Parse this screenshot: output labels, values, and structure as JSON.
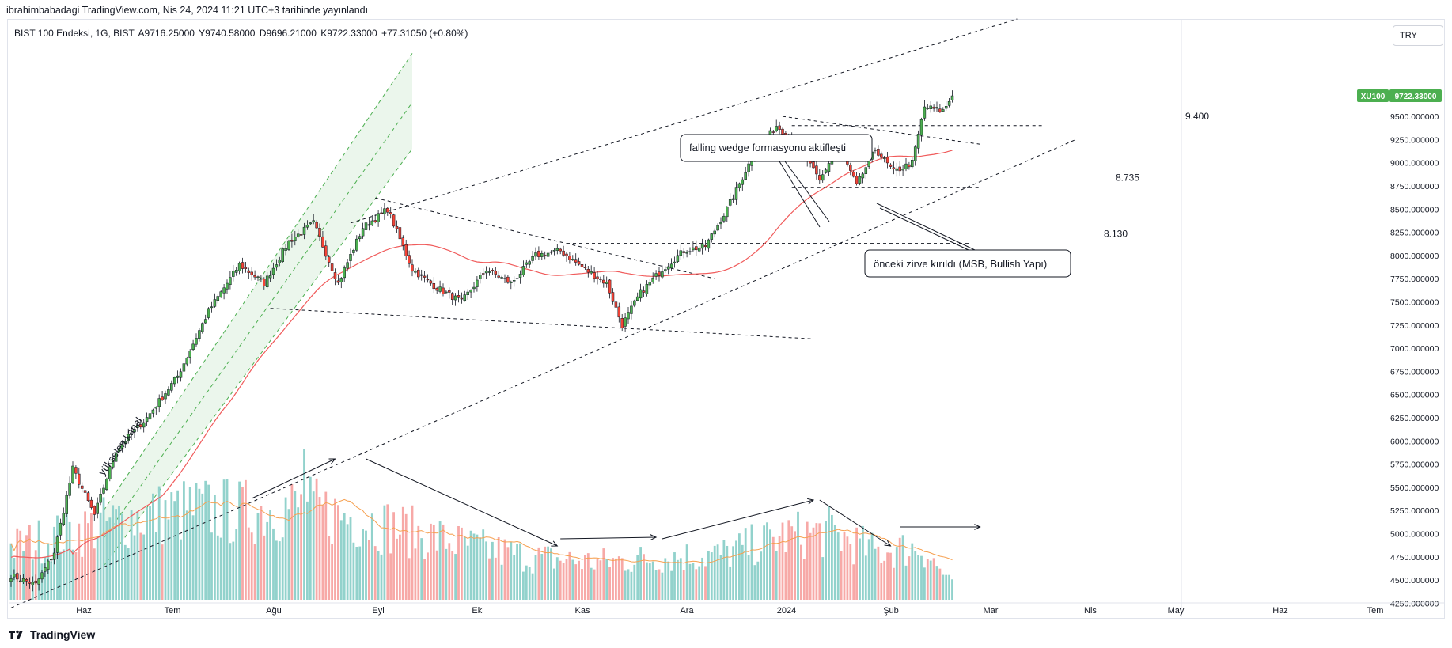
{
  "header": {
    "publish_text": "ibrahimbabadagi TradingView.com, Nis 24, 2024 11:21 UTC+3 tarihinde yayınlandı"
  },
  "symbol": {
    "name": "BIST 100 Endeksi, 1G, BIST",
    "open": "A9716.25000",
    "high": "Y9740.58000",
    "low": "D9696.21000",
    "close": "K9722.33000",
    "change": "+77.31050 (+0.80%)"
  },
  "currency": "TRY",
  "price_tag": {
    "ticker": "XU100",
    "value": "9722.33000"
  },
  "footer": {
    "brand": "TradingView"
  },
  "colors": {
    "up": "#26a69a",
    "down": "#ef5350",
    "candle_up_fill": "#4caf50",
    "candle_down_fill": "#f44336",
    "ma": "#f05b5b",
    "vol_ma": "#f6a050",
    "vol_up": "#92d2cc",
    "vol_down": "#f7a9a7",
    "channel": "#4caf50",
    "price_tag_bg": "#4caf50"
  },
  "annotations": {
    "channel_label": "yükselen kanal",
    "wedge_callout": "falling wedge formasyonu aktifleşti",
    "msb_callout": "önceki zirve kırıldı (MSB, Bullish Yapı)",
    "level_9400": "9.400",
    "level_8735": "8.735",
    "level_8130": "8.130"
  },
  "chart_data": {
    "type": "candlestick",
    "title": "BIST 100 Endeksi, 1G, BIST",
    "ylim": [
      4100,
      10550
    ],
    "y_ticks": [
      "4250.000000",
      "4500.000000",
      "4750.000000",
      "5000.000000",
      "5250.000000",
      "5500.000000",
      "5750.000000",
      "6000.000000",
      "6250.000000",
      "6500.000000",
      "6750.000000",
      "7000.000000",
      "7250.000000",
      "7500.000000",
      "7750.000000",
      "8000.000000",
      "8250.000000",
      "8500.000000",
      "8750.000000",
      "9000.000000",
      "9250.000000",
      "9500.000000"
    ],
    "x_ticks": [
      "Haz",
      "Tem",
      "Ağu",
      "Eyl",
      "Eki",
      "Kas",
      "Ara",
      "2024",
      "Şub",
      "Mar",
      "Nis",
      "May",
      "Haz",
      "Tem"
    ],
    "anchors": {
      "comment": "approximate closing prices along the series (estimated from the chart)",
      "points": [
        [
          0,
          4550
        ],
        [
          8,
          4450
        ],
        [
          14,
          4800
        ],
        [
          20,
          5700
        ],
        [
          27,
          5200
        ],
        [
          34,
          5900
        ],
        [
          44,
          6250
        ],
        [
          54,
          6700
        ],
        [
          64,
          7400
        ],
        [
          74,
          7900
        ],
        [
          82,
          7700
        ],
        [
          90,
          8150
        ],
        [
          98,
          8350
        ],
        [
          106,
          7700
        ],
        [
          114,
          8300
        ],
        [
          122,
          8500
        ],
        [
          130,
          7850
        ],
        [
          138,
          7650
        ],
        [
          146,
          7500
        ],
        [
          154,
          7850
        ],
        [
          162,
          7700
        ],
        [
          170,
          8000
        ],
        [
          178,
          8050
        ],
        [
          186,
          7850
        ],
        [
          193,
          7700
        ],
        [
          198,
          7250
        ],
        [
          204,
          7600
        ],
        [
          211,
          7850
        ],
        [
          218,
          8050
        ],
        [
          225,
          8100
        ],
        [
          232,
          8500
        ],
        [
          240,
          9050
        ],
        [
          248,
          9400
        ],
        [
          255,
          9200
        ],
        [
          262,
          8800
        ],
        [
          268,
          9200
        ],
        [
          274,
          8750
        ],
        [
          280,
          9150
        ],
        [
          286,
          8900
        ],
        [
          292,
          9000
        ],
        [
          296,
          9600
        ],
        [
          302,
          9560
        ],
        [
          305,
          9722
        ]
      ]
    },
    "ma_last": 9150,
    "volume": {
      "comment": "relative volume levels (0-1) along the series, estimated",
      "levels": [
        [
          0,
          0.35
        ],
        [
          20,
          0.45
        ],
        [
          40,
          0.55
        ],
        [
          60,
          0.6
        ],
        [
          75,
          0.58
        ],
        [
          90,
          0.62
        ],
        [
          110,
          0.55
        ],
        [
          130,
          0.45
        ],
        [
          150,
          0.35
        ],
        [
          170,
          0.28
        ],
        [
          190,
          0.25
        ],
        [
          210,
          0.28
        ],
        [
          230,
          0.3
        ],
        [
          250,
          0.42
        ],
        [
          265,
          0.45
        ],
        [
          280,
          0.32
        ],
        [
          295,
          0.35
        ],
        [
          305,
          0.1
        ]
      ]
    },
    "levels": [
      9400,
      8735,
      8130
    ]
  }
}
